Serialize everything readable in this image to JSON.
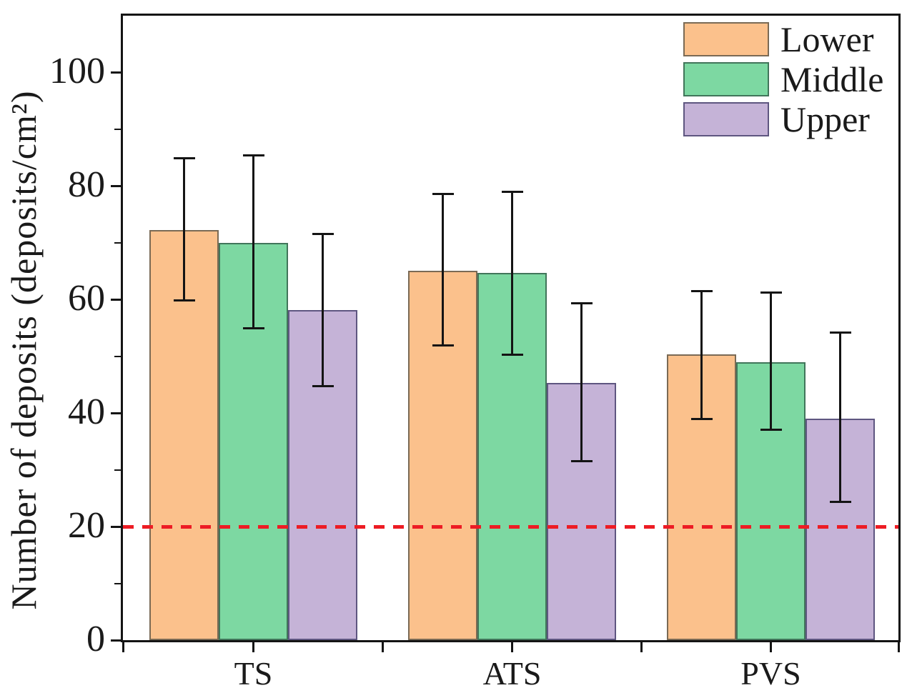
{
  "chart_data": {
    "type": "bar",
    "title": "",
    "xlabel": "",
    "ylabel": "Number of deposits (deposits/cm²)",
    "categories": [
      "TS",
      "ATS",
      "PVS"
    ],
    "series": [
      {
        "name": "Lower",
        "color": "#FBC18C",
        "edge_color": "#7a6a55",
        "values": [
          72.2,
          65.1,
          50.3
        ],
        "err_low": [
          59.8,
          51.9,
          38.9
        ],
        "err_high": [
          84.9,
          78.6,
          61.5
        ]
      },
      {
        "name": "Middle",
        "color": "#7DD8A2",
        "edge_color": "#41755a",
        "values": [
          70.0,
          64.7,
          49.0
        ],
        "err_low": [
          55.0,
          50.3,
          37.1
        ],
        "err_high": [
          85.4,
          79.0,
          61.2
        ]
      },
      {
        "name": "Upper",
        "color": "#C5B3D7",
        "edge_color": "#5e5680",
        "values": [
          58.2,
          45.3,
          39.0
        ],
        "err_low": [
          44.7,
          31.5,
          24.3
        ],
        "err_high": [
          71.5,
          59.3,
          54.2
        ]
      }
    ],
    "ylim": [
      0,
      110
    ],
    "yticks": [
      0,
      20,
      40,
      60,
      80,
      100
    ],
    "yticks_minor": [
      10,
      30,
      50,
      70,
      90
    ],
    "error_bar_color": "#141414",
    "axis_color": "#141414",
    "reference_line": {
      "y": 20,
      "color": "#ED1C24",
      "style": "dashed"
    },
    "legend_position": "upper right",
    "grid": false
  }
}
